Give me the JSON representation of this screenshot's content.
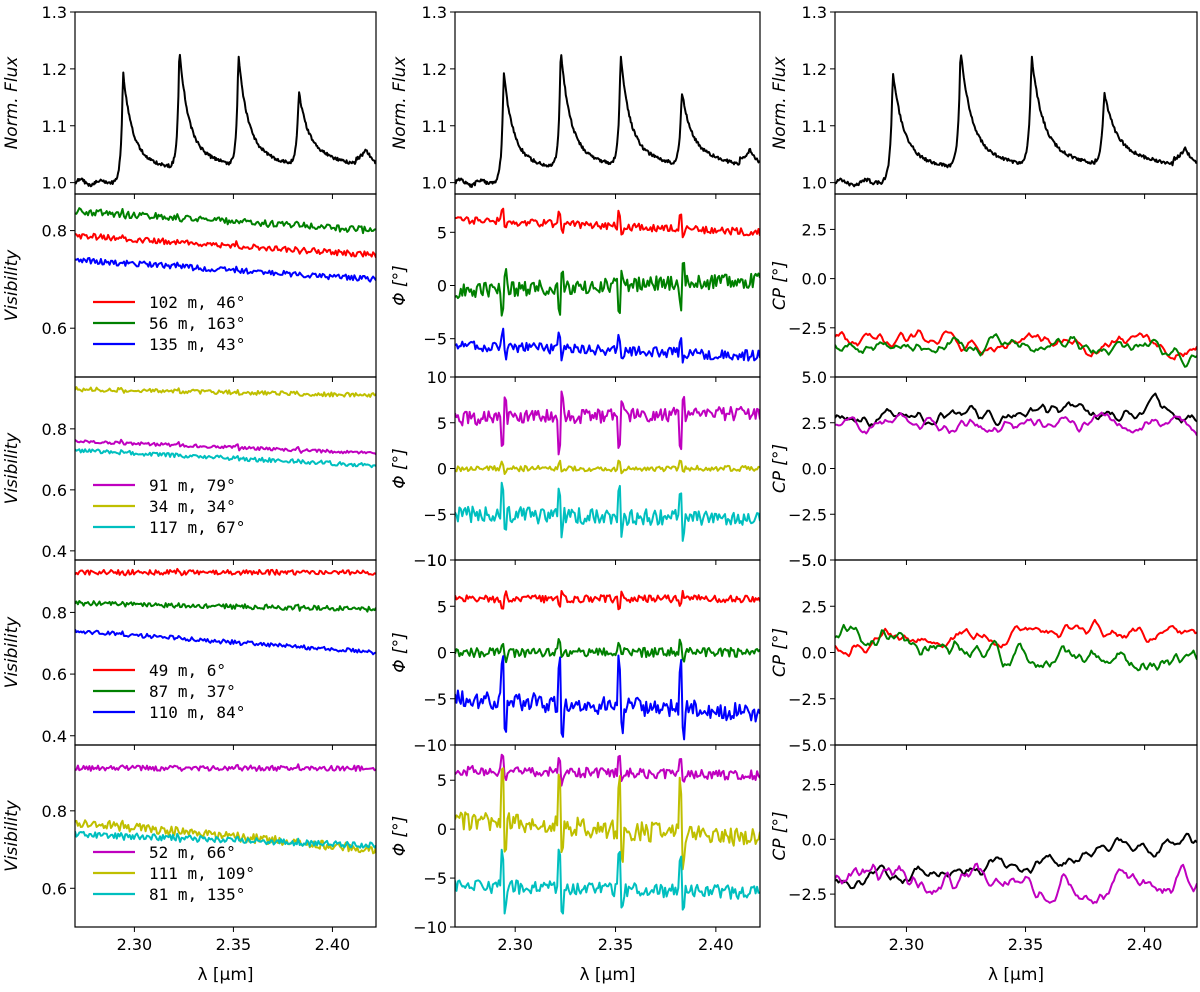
{
  "figure": {
    "x_axis_label": "λ [μm]",
    "x_ticks": [
      "2.30",
      "2.35",
      "2.40"
    ],
    "x_tick_values": [
      2.3,
      2.35,
      2.4
    ]
  },
  "chart_data": {
    "type": "line",
    "xlim": [
      2.27,
      2.422
    ],
    "colors": {
      "red": "#ff0000",
      "green": "#008000",
      "blue": "#0000ff",
      "magenta": "#bf00bf",
      "olive": "#bfbf00",
      "cyan": "#00bfbf",
      "black": "#000000"
    },
    "columns": [
      {
        "rows": [
          {
            "id": "flux",
            "ylabel": "Norm. Flux",
            "ylim": [
              0.98,
              1.3
            ],
            "yticks": [
              "1.0",
              "1.1",
              "1.2",
              "1.3"
            ],
            "ytick_values": [
              1.0,
              1.1,
              1.2,
              1.3
            ],
            "series": [
              {
                "color": "#000000",
                "spectrum": true,
                "base": 1.0
              }
            ]
          },
          {
            "id": "vis1",
            "ylabel": "Visibility",
            "ylim": [
              0.5,
              0.875
            ],
            "yticks": [
              "0.6",
              "0.8"
            ],
            "ytick_values": [
              0.6,
              0.8
            ],
            "legend": [
              "102 m, 46°",
              "56 m, 163°",
              "135 m, 43°"
            ],
            "series": [
              {
                "color": "#ff0000",
                "start": 0.79,
                "end": 0.75,
                "noise": 0.006,
                "spikes": 0.004
              },
              {
                "color": "#008000",
                "start": 0.84,
                "end": 0.8,
                "noise": 0.007,
                "spikes": 0.004
              },
              {
                "color": "#0000ff",
                "start": 0.74,
                "end": 0.7,
                "noise": 0.006,
                "spikes": 0.003
              }
            ]
          },
          {
            "id": "vis2",
            "ylabel": "Visibility",
            "ylim": [
              0.37,
              0.97
            ],
            "yticks": [
              "0.4",
              "0.6",
              "0.8"
            ],
            "ytick_values": [
              0.4,
              0.6,
              0.8
            ],
            "legend": [
              "91 m, 79°",
              "34 m, 34°",
              "117 m, 67°"
            ],
            "series": [
              {
                "color": "#bf00bf",
                "start": 0.76,
                "end": 0.72,
                "noise": 0.005,
                "spikes": 0.008
              },
              {
                "color": "#bfbf00",
                "start": 0.93,
                "end": 0.91,
                "noise": 0.007,
                "spikes": 0.004
              },
              {
                "color": "#00bfbf",
                "start": 0.73,
                "end": 0.68,
                "noise": 0.007,
                "spikes": 0.004
              }
            ]
          },
          {
            "id": "vis3",
            "ylabel": "Visibility",
            "ylim": [
              0.37,
              0.97
            ],
            "yticks": [
              "0.4",
              "0.6",
              "0.8"
            ],
            "ytick_values": [
              0.4,
              0.6,
              0.8
            ],
            "legend": [
              "49 m, 6°",
              "87 m, 37°",
              "110 m, 84°"
            ],
            "series": [
              {
                "color": "#ff0000",
                "start": 0.93,
                "end": 0.93,
                "noise": 0.008,
                "spikes": 0.005
              },
              {
                "color": "#008000",
                "start": 0.83,
                "end": 0.81,
                "noise": 0.008,
                "spikes": 0.005
              },
              {
                "color": "#0000ff",
                "start": 0.74,
                "end": 0.67,
                "noise": 0.007,
                "spikes": 0.004
              }
            ]
          },
          {
            "id": "vis4",
            "ylabel": "Visibility",
            "ylim": [
              0.5,
              0.97
            ],
            "yticks": [
              "0.6",
              "0.8"
            ],
            "ytick_values": [
              0.6,
              0.8
            ],
            "legend": [
              "52 m, 66°",
              "111 m, 109°",
              "81 m, 135°"
            ],
            "series": [
              {
                "color": "#bf00bf",
                "start": 0.91,
                "end": 0.91,
                "noise": 0.007,
                "spikes": 0.004
              },
              {
                "color": "#bfbf00",
                "start": 0.77,
                "end": 0.7,
                "noise": 0.012,
                "spikes": 0.004
              },
              {
                "color": "#00bfbf",
                "start": 0.74,
                "end": 0.71,
                "noise": 0.008,
                "spikes": 0.004
              }
            ]
          }
        ]
      },
      {
        "rows": [
          {
            "id": "flux",
            "ylabel": "Norm. Flux",
            "ylim": [
              0.98,
              1.3
            ],
            "yticks": [
              "1.0",
              "1.1",
              "1.2",
              "1.3"
            ],
            "ytick_values": [
              1.0,
              1.1,
              1.2,
              1.3
            ],
            "series": [
              {
                "color": "#000000",
                "spectrum": true,
                "base": 1.0
              }
            ]
          },
          {
            "id": "phi1",
            "ylabel": "Φ [°]",
            "ylim": [
              -8.6,
              8.6
            ],
            "yticks": [
              "5",
              "0",
              "−5"
            ],
            "ytick_values": [
              5,
              0,
              -5
            ],
            "series": [
              {
                "color": "#ff0000",
                "start": 6.2,
                "end": 5.0,
                "noise": 0.35,
                "spikes": 1.2
              },
              {
                "color": "#008000",
                "start": -0.5,
                "end": 0.5,
                "noise": 0.7,
                "spikes": -2.2
              },
              {
                "color": "#0000ff",
                "start": -5.6,
                "end": -6.6,
                "noise": 0.5,
                "spikes": 1.2
              }
            ]
          },
          {
            "id": "phi2",
            "ylabel": "Φ [°]",
            "ylim": [
              -10,
              10
            ],
            "yticks": [
              "10",
              "5",
              "0",
              "−5",
              "−10"
            ],
            "ytick_values": [
              10,
              5,
              0,
              -5,
              -10
            ],
            "series": [
              {
                "color": "#bf00bf",
                "start": 5.5,
                "end": 6.0,
                "noise": 0.8,
                "spikes": -3.5
              },
              {
                "color": "#bfbf00",
                "start": 0.0,
                "end": 0.0,
                "noise": 0.3,
                "spikes": 0.6
              },
              {
                "color": "#00bfbf",
                "start": -5.0,
                "end": -5.5,
                "noise": 0.9,
                "spikes": 3.0
              }
            ]
          },
          {
            "id": "phi3",
            "ylabel": "Φ [°]",
            "ylim": [
              -10,
              10
            ],
            "yticks": [
              "10",
              "5",
              "0",
              "−5",
              "−10"
            ],
            "ytick_values": [
              10,
              5,
              0,
              -5,
              -10
            ],
            "series": [
              {
                "color": "#ff0000",
                "start": 5.8,
                "end": 5.8,
                "noise": 0.4,
                "spikes": -0.8
              },
              {
                "color": "#008000",
                "start": 0.0,
                "end": 0.0,
                "noise": 0.5,
                "spikes": 1.0
              },
              {
                "color": "#0000ff",
                "start": -5.0,
                "end": -6.5,
                "noise": 1.0,
                "spikes": 4.5
              }
            ]
          },
          {
            "id": "phi4",
            "ylabel": "Φ [°]",
            "ylim": [
              -10,
              8.6
            ],
            "yticks": [
              "5",
              "0",
              "−5",
              "−10"
            ],
            "ytick_values": [
              5,
              0,
              -5,
              -10
            ],
            "series": [
              {
                "color": "#bf00bf",
                "start": 6.0,
                "end": 5.5,
                "noise": 0.5,
                "spikes": 1.5
              },
              {
                "color": "#bfbf00",
                "start": 1.0,
                "end": -1.0,
                "noise": 1.0,
                "spikes": 5.0
              },
              {
                "color": "#00bfbf",
                "start": -5.8,
                "end": -6.5,
                "noise": 0.7,
                "spikes": 3.5
              }
            ]
          }
        ]
      },
      {
        "rows": [
          {
            "id": "flux",
            "ylabel": "Norm. Flux",
            "ylim": [
              0.98,
              1.3
            ],
            "yticks": [
              "1.0",
              "1.1",
              "1.2",
              "1.3"
            ],
            "ytick_values": [
              1.0,
              1.1,
              1.2,
              1.3
            ],
            "series": [
              {
                "color": "#000000",
                "spectrum": true,
                "base": 1.0
              }
            ]
          },
          {
            "id": "cp1",
            "ylabel": "CP [°]",
            "ylim": [
              -5.0,
              4.3
            ],
            "yticks": [
              "2.5",
              "0.0",
              "−2.5"
            ],
            "ytick_values": [
              2.5,
              0.0,
              -2.5
            ],
            "series": [
              {
                "color": "#ff0000",
                "start": -3.0,
                "end": -3.4,
                "noise": 0.35,
                "smooth": true
              },
              {
                "color": "#008000",
                "start": -3.2,
                "end": -3.6,
                "noise": 0.35,
                "smooth": true
              }
            ]
          },
          {
            "id": "cp2",
            "ylabel": "CP [°]",
            "ylim": [
              -5.0,
              5.0
            ],
            "yticks": [
              "5.0",
              "2.5",
              "0.0",
              "−2.5",
              "−5.0"
            ],
            "ytick_values": [
              5.0,
              2.5,
              0.0,
              -2.5,
              -5.0
            ],
            "series": [
              {
                "color": "#000000",
                "start": 2.8,
                "end": 3.0,
                "noise": 0.35,
                "smooth": true
              },
              {
                "color": "#bf00bf",
                "start": 2.3,
                "end": 2.4,
                "noise": 0.35,
                "smooth": true
              }
            ]
          },
          {
            "id": "cp3",
            "ylabel": "CP [°]",
            "ylim": [
              -5.0,
              5.0
            ],
            "yticks": [
              "5.0",
              "2.5",
              "0.0",
              "−2.5",
              "−5.0"
            ],
            "ytick_values": [
              5.0,
              2.5,
              0.0,
              -2.5,
              -5.0
            ],
            "series": [
              {
                "color": "#ff0000",
                "start": 0.5,
                "end": 1.3,
                "noise": 0.35,
                "smooth": true
              },
              {
                "color": "#008000",
                "start": 0.8,
                "end": -0.8,
                "noise": 0.5,
                "smooth": true
              }
            ]
          },
          {
            "id": "cp4",
            "ylabel": "CP [°]",
            "ylim": [
              -4.0,
              4.3
            ],
            "yticks": [
              "2.5",
              "0.0",
              "−2.5"
            ],
            "ytick_values": [
              2.5,
              0.0,
              -2.5
            ],
            "series": [
              {
                "color": "#000000",
                "start": -2.0,
                "end": -0.2,
                "noise": 0.3,
                "smooth": true
              },
              {
                "color": "#bf00bf",
                "start": -1.7,
                "end": -2.0,
                "noise": 0.45,
                "smooth": true
              }
            ]
          }
        ]
      }
    ],
    "flux_lines": [
      {
        "center": 2.2942,
        "peak": 1.2
      },
      {
        "center": 2.3227,
        "peak": 1.225
      },
      {
        "center": 2.3525,
        "peak": 1.21
      },
      {
        "center": 2.383,
        "peak": 1.145
      }
    ]
  }
}
